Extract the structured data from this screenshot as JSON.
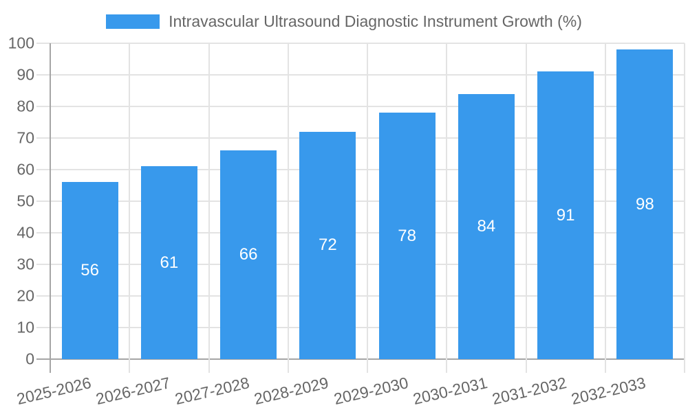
{
  "chart_data": {
    "type": "bar",
    "title": "Intravascular Ultrasound Diagnostic Instrument Growth (%)",
    "categories": [
      "2025-2026",
      "2026-2027",
      "2027-2028",
      "2028-2029",
      "2029-2030",
      "2030-2031",
      "2031-2032",
      "2032-2033"
    ],
    "values": [
      56,
      61,
      66,
      72,
      78,
      84,
      91,
      98
    ],
    "xlabel": "",
    "ylabel": "",
    "ylim": [
      0,
      100
    ],
    "yticks": [
      0,
      10,
      20,
      30,
      40,
      50,
      60,
      70,
      80,
      90,
      100
    ],
    "grid": true,
    "legend_position": "top",
    "value_labels_position": "center-inside",
    "xlabel_rotation_deg": -13,
    "colors": {
      "bar": "#3899EC",
      "bar_value_label": "#ffffff",
      "axis_text": "#666666",
      "gridline": "#E3E3E3",
      "axis_line": "#A5A5A5",
      "background": "#ffffff"
    }
  }
}
